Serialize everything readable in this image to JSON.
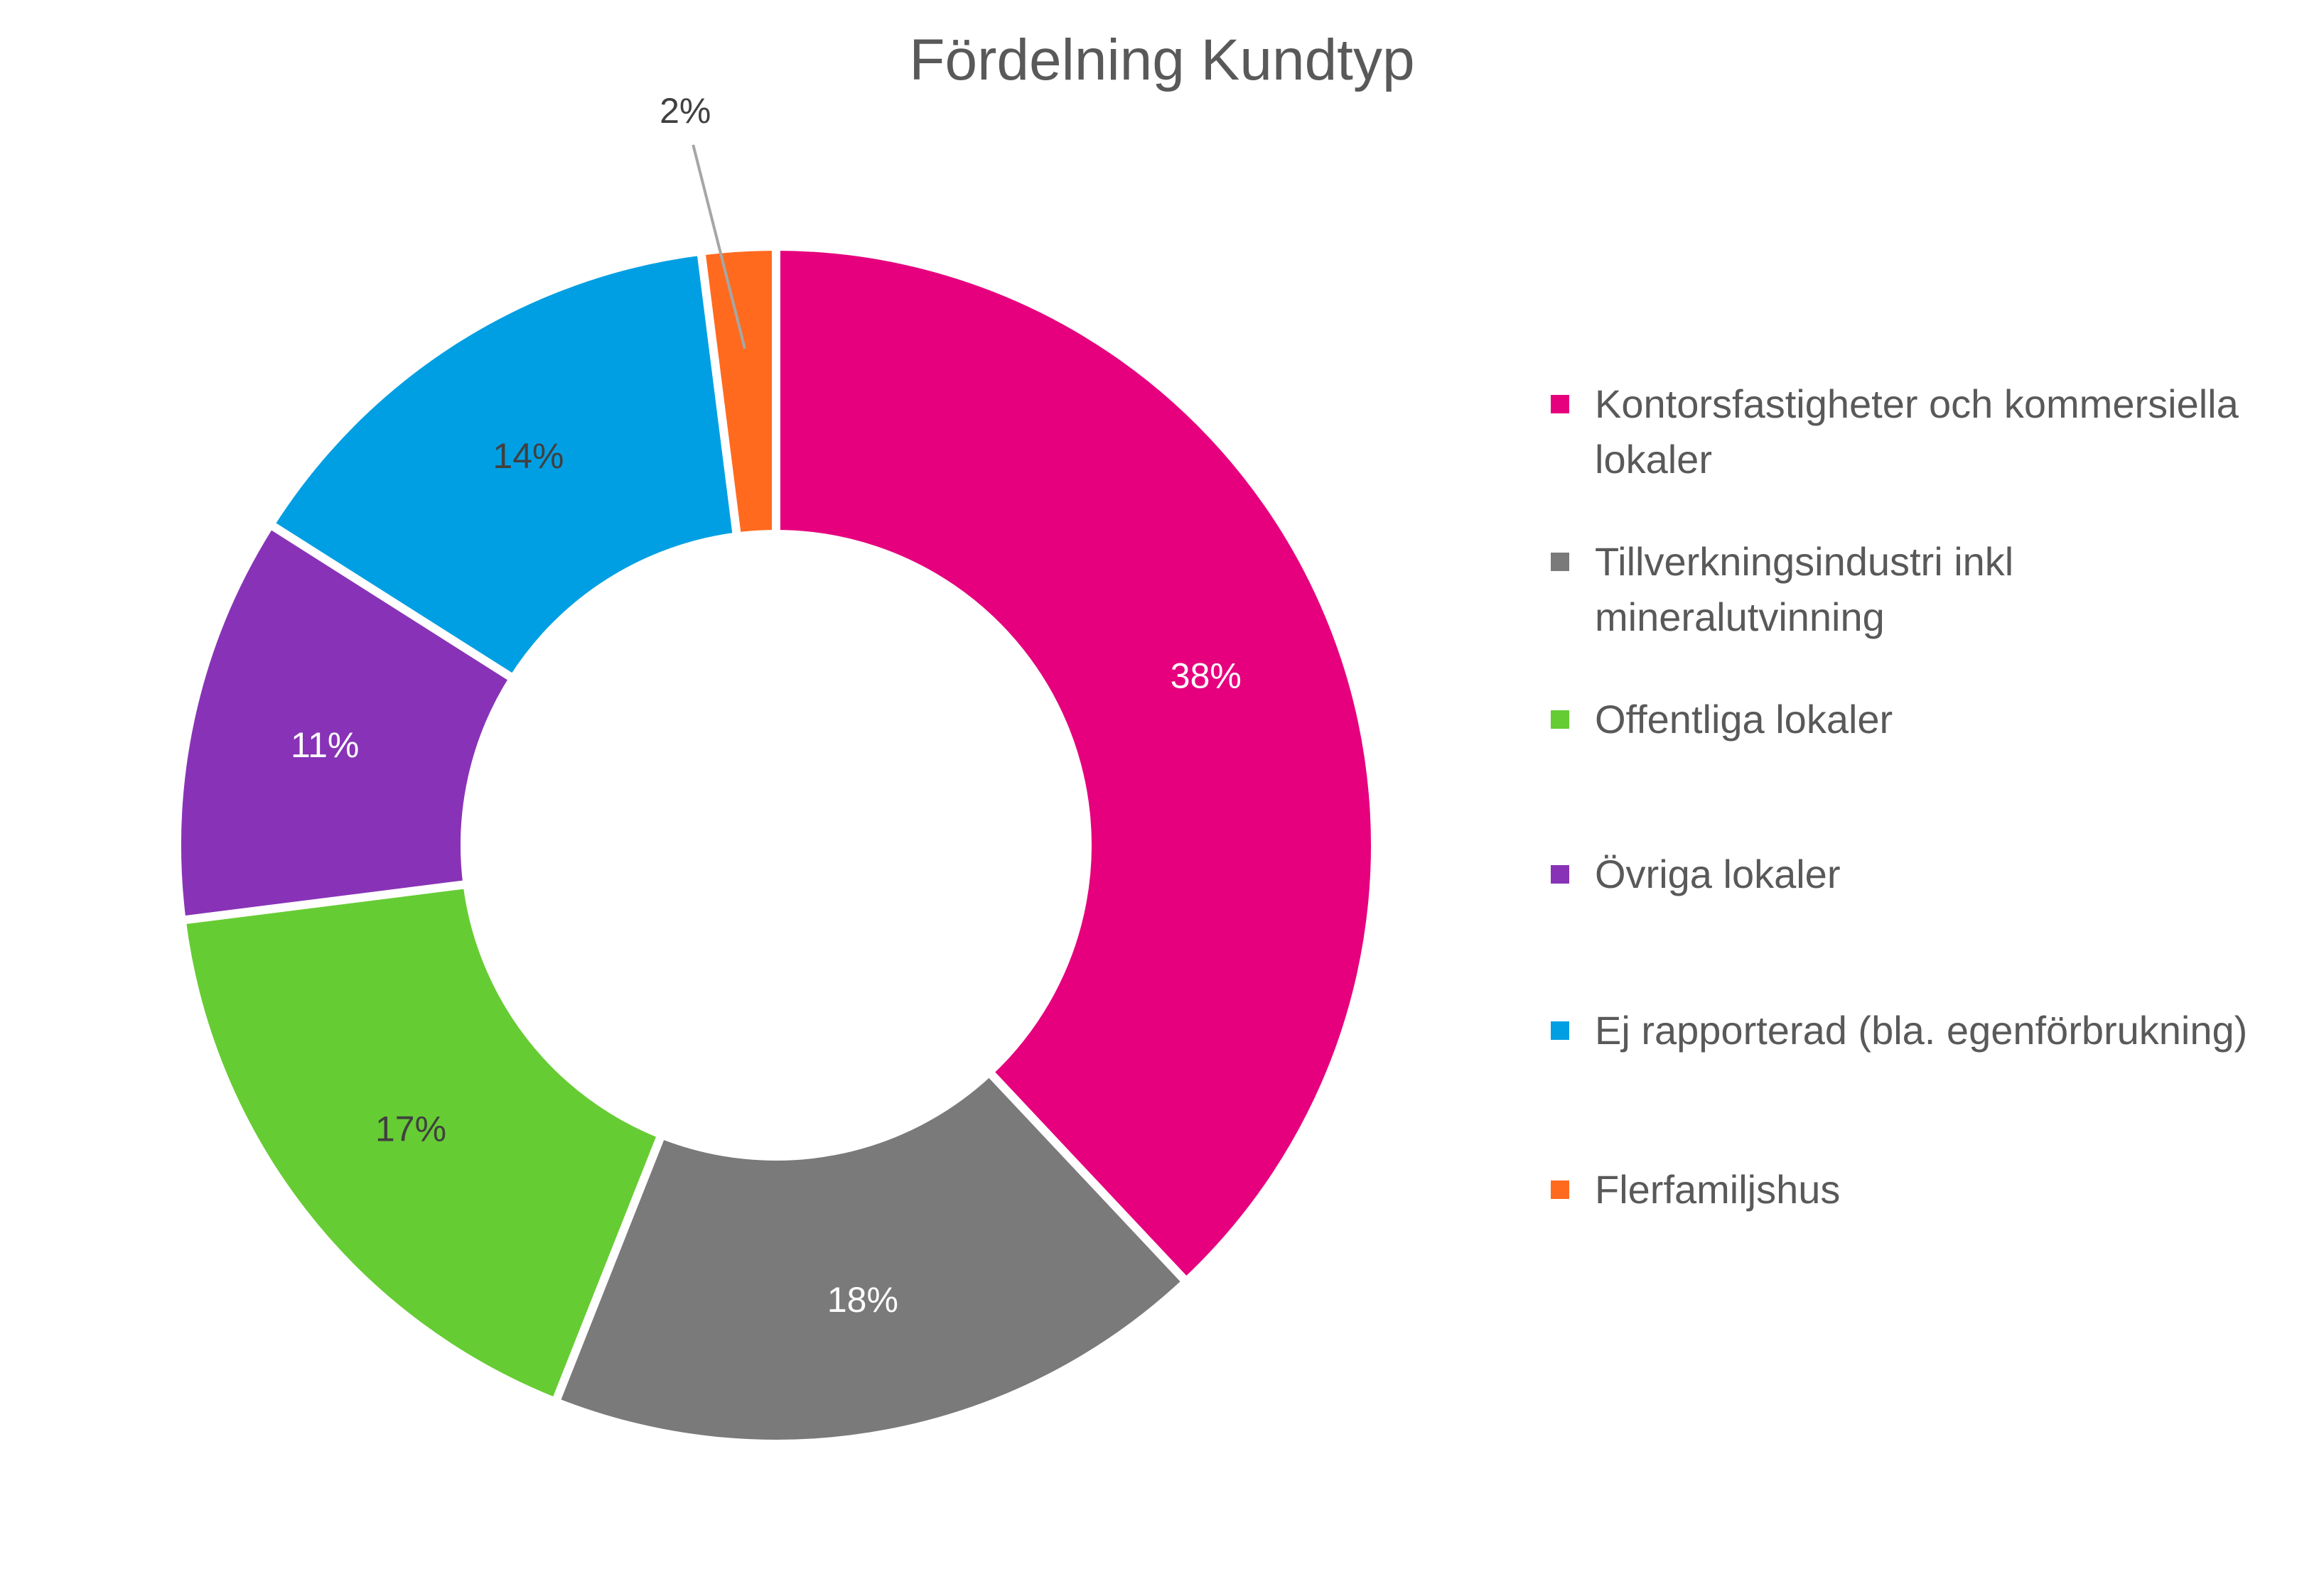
{
  "chart_data": {
    "type": "pie",
    "variant": "donut",
    "title": "Fördelning Kundtyp",
    "legend_position": "right",
    "slices": [
      {
        "label": "Kontorsfastigheter och kommersiella lokaler",
        "value": 38,
        "data_label": "38%",
        "color": "#E6007E",
        "label_color": "#ffffff"
      },
      {
        "label": "Tillverkningsindustri inkl mineralutvinning",
        "value": 18,
        "data_label": "18%",
        "color": "#7A7A7A",
        "label_color": "#ffffff"
      },
      {
        "label": "Offentliga lokaler",
        "value": 17,
        "data_label": "17%",
        "color": "#66CC33",
        "label_color": "#404040"
      },
      {
        "label": "Övriga lokaler",
        "value": 11,
        "data_label": "11%",
        "color": "#8833B7",
        "label_color": "#ffffff"
      },
      {
        "label": "Ej rapporterad (bla. egenförbrukning)",
        "value": 14,
        "data_label": "14%",
        "color": "#009FE3",
        "label_color": "#404040"
      },
      {
        "label": "Flerfamiljshus",
        "value": 2,
        "data_label": "2%",
        "color": "#FF6A1F",
        "label_color": "#404040"
      }
    ]
  }
}
